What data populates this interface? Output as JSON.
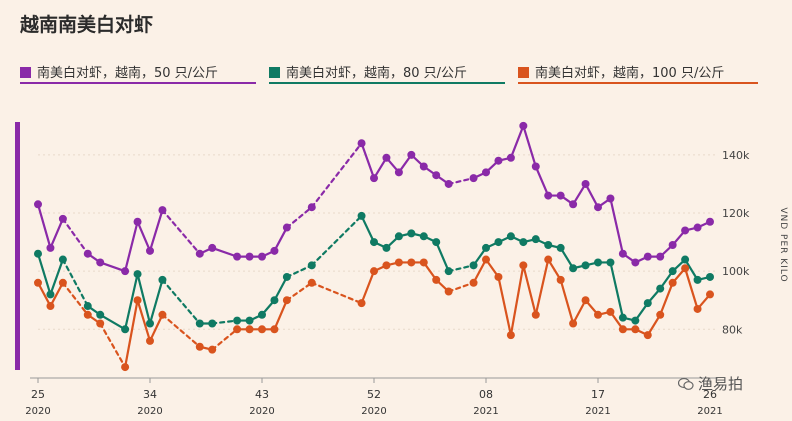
{
  "title": "越南南美白对虾",
  "chart_data": {
    "type": "line",
    "ylabel": "VND PER KILO",
    "ylim": [
      66000,
      152000
    ],
    "yticks": [
      80000,
      100000,
      120000,
      140000
    ],
    "ytick_labels": [
      "80k",
      "100k",
      "120k",
      "140k"
    ],
    "xticks": [
      {
        "week": 0,
        "label": "25",
        "year": "2020"
      },
      {
        "week": 9,
        "label": "34",
        "year": "2020"
      },
      {
        "week": 18,
        "label": "43",
        "year": "2020"
      },
      {
        "week": 27,
        "label": "52",
        "year": "2020"
      },
      {
        "week": 36,
        "label": "08",
        "year": "2021"
      },
      {
        "week": 45,
        "label": "17",
        "year": "2021"
      },
      {
        "week": 54,
        "label": "26",
        "year": "2021"
      }
    ],
    "series": [
      {
        "name": "南美白对虾，越南，50 只/公斤",
        "color": "#8a2aa8",
        "points": [
          [
            0,
            123000
          ],
          [
            1,
            108000
          ],
          [
            2,
            118000
          ],
          [
            4,
            106000
          ],
          [
            5,
            103000
          ],
          [
            7,
            100000
          ],
          [
            8,
            117000
          ],
          [
            9,
            107000
          ],
          [
            10,
            121000
          ],
          [
            13,
            106000
          ],
          [
            14,
            108000
          ],
          [
            16,
            105000
          ],
          [
            17,
            105000
          ],
          [
            18,
            105000
          ],
          [
            19,
            107000
          ],
          [
            20,
            115000
          ],
          [
            22,
            122000
          ],
          [
            26,
            144000
          ],
          [
            27,
            132000
          ],
          [
            28,
            139000
          ],
          [
            29,
            134000
          ],
          [
            30,
            140000
          ],
          [
            31,
            136000
          ],
          [
            32,
            133000
          ],
          [
            33,
            130000
          ],
          [
            35,
            132000
          ],
          [
            36,
            134000
          ],
          [
            37,
            138000
          ],
          [
            38,
            139000
          ],
          [
            39,
            150000
          ],
          [
            40,
            136000
          ],
          [
            41,
            126000
          ],
          [
            42,
            126000
          ],
          [
            43,
            123000
          ],
          [
            44,
            130000
          ],
          [
            45,
            122000
          ],
          [
            46,
            125000
          ],
          [
            47,
            106000
          ],
          [
            48,
            103000
          ],
          [
            49,
            105000
          ],
          [
            50,
            105000
          ],
          [
            51,
            109000
          ],
          [
            52,
            114000
          ],
          [
            53,
            115000
          ],
          [
            54,
            117000
          ]
        ],
        "gaps": [
          [
            2,
            4
          ],
          [
            10,
            13
          ],
          [
            20,
            22
          ],
          [
            22,
            26
          ],
          [
            33,
            35
          ]
        ]
      },
      {
        "name": "南美白对虾，越南，80 只/公斤",
        "color": "#0f7a63",
        "points": [
          [
            0,
            106000
          ],
          [
            1,
            92000
          ],
          [
            2,
            104000
          ],
          [
            4,
            88000
          ],
          [
            5,
            85000
          ],
          [
            7,
            80000
          ],
          [
            8,
            99000
          ],
          [
            9,
            82000
          ],
          [
            10,
            97000
          ],
          [
            13,
            82000
          ],
          [
            14,
            82000
          ],
          [
            16,
            83000
          ],
          [
            17,
            83000
          ],
          [
            18,
            85000
          ],
          [
            19,
            90000
          ],
          [
            20,
            98000
          ],
          [
            22,
            102000
          ],
          [
            26,
            119000
          ],
          [
            27,
            110000
          ],
          [
            28,
            108000
          ],
          [
            29,
            112000
          ],
          [
            30,
            113000
          ],
          [
            31,
            112000
          ],
          [
            32,
            110000
          ],
          [
            33,
            100000
          ],
          [
            35,
            102000
          ],
          [
            36,
            108000
          ],
          [
            37,
            110000
          ],
          [
            38,
            112000
          ],
          [
            39,
            110000
          ],
          [
            40,
            111000
          ],
          [
            41,
            109000
          ],
          [
            42,
            108000
          ],
          [
            43,
            101000
          ],
          [
            44,
            102000
          ],
          [
            45,
            103000
          ],
          [
            46,
            103000
          ],
          [
            47,
            84000
          ],
          [
            48,
            83000
          ],
          [
            49,
            89000
          ],
          [
            50,
            94000
          ],
          [
            51,
            100000
          ],
          [
            52,
            104000
          ],
          [
            53,
            97000
          ],
          [
            54,
            98000
          ]
        ],
        "gaps": [
          [
            2,
            4
          ],
          [
            10,
            13
          ],
          [
            14,
            16
          ],
          [
            20,
            22
          ],
          [
            22,
            26
          ],
          [
            33,
            35
          ]
        ]
      },
      {
        "name": "南美白对虾，越南，100 只/公斤",
        "color": "#d9541e",
        "points": [
          [
            0,
            96000
          ],
          [
            1,
            88000
          ],
          [
            2,
            96000
          ],
          [
            4,
            85000
          ],
          [
            5,
            82000
          ],
          [
            7,
            67000
          ],
          [
            8,
            90000
          ],
          [
            9,
            76000
          ],
          [
            10,
            85000
          ],
          [
            13,
            74000
          ],
          [
            14,
            73000
          ],
          [
            16,
            80000
          ],
          [
            17,
            80000
          ],
          [
            18,
            80000
          ],
          [
            19,
            80000
          ],
          [
            20,
            90000
          ],
          [
            22,
            96000
          ],
          [
            26,
            89000
          ],
          [
            27,
            100000
          ],
          [
            28,
            102000
          ],
          [
            29,
            103000
          ],
          [
            30,
            103000
          ],
          [
            31,
            103000
          ],
          [
            32,
            97000
          ],
          [
            33,
            93000
          ],
          [
            35,
            96000
          ],
          [
            36,
            104000
          ],
          [
            37,
            98000
          ],
          [
            38,
            78000
          ],
          [
            39,
            102000
          ],
          [
            40,
            85000
          ],
          [
            41,
            104000
          ],
          [
            42,
            97000
          ],
          [
            43,
            82000
          ],
          [
            44,
            90000
          ],
          [
            45,
            85000
          ],
          [
            46,
            86000
          ],
          [
            47,
            80000
          ],
          [
            48,
            80000
          ],
          [
            49,
            78000
          ],
          [
            50,
            85000
          ],
          [
            51,
            96000
          ],
          [
            52,
            101000
          ],
          [
            53,
            87000
          ],
          [
            54,
            92000
          ]
        ],
        "gaps": [
          [
            2,
            4
          ],
          [
            5,
            7
          ],
          [
            10,
            13
          ],
          [
            14,
            16
          ],
          [
            20,
            22
          ],
          [
            22,
            26
          ],
          [
            33,
            35
          ]
        ]
      }
    ]
  },
  "watermark": "渔易拍"
}
